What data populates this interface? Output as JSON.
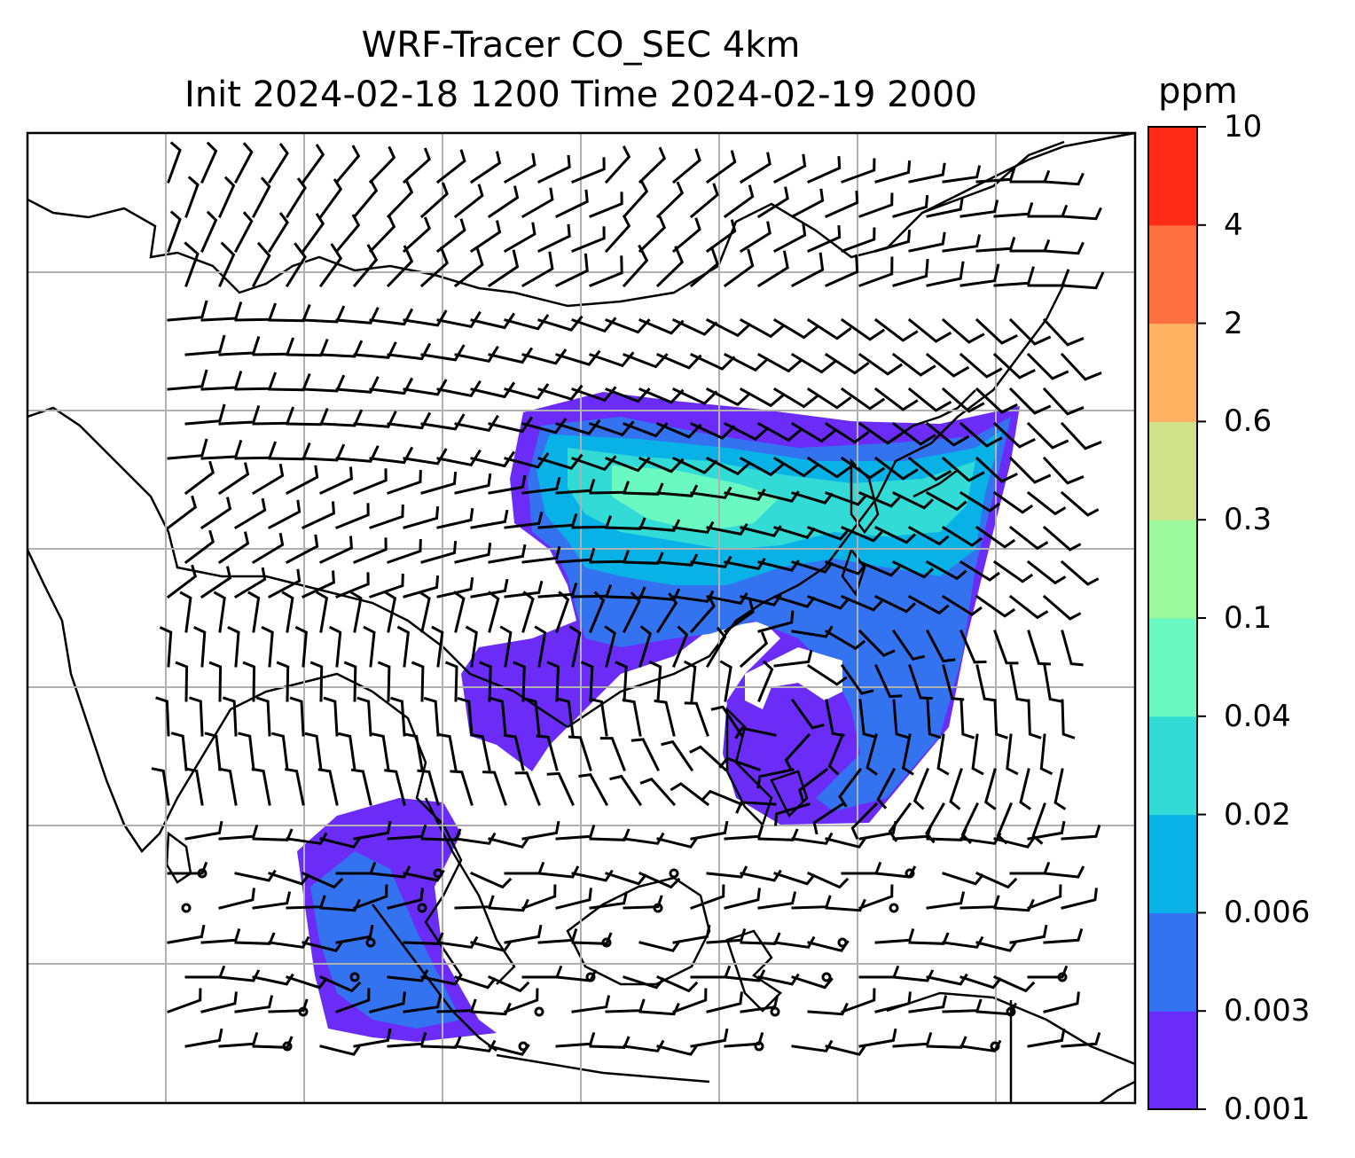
{
  "title": {
    "line1": "WRF-Tracer CO_SEC 4km",
    "line2": "Init 2024-02-18 1200 Time 2024-02-19 2000"
  },
  "colorbar": {
    "unit": "ppm",
    "ticks": [
      "0.001",
      "0.003",
      "0.006",
      "0.02",
      "0.04",
      "0.1",
      "0.3",
      "0.6",
      "2",
      "4",
      "10"
    ],
    "colors": [
      "#6a2cf6",
      "#3373f0",
      "#08b2e6",
      "#33dbd6",
      "#6afac1",
      "#9bf99b",
      "#d0e18a",
      "#feb160",
      "#ff7040",
      "#ff2a18"
    ]
  },
  "map": {
    "gridlines": true,
    "coastline_color": "#000000",
    "grid_color": "#b0b0b0"
  }
}
